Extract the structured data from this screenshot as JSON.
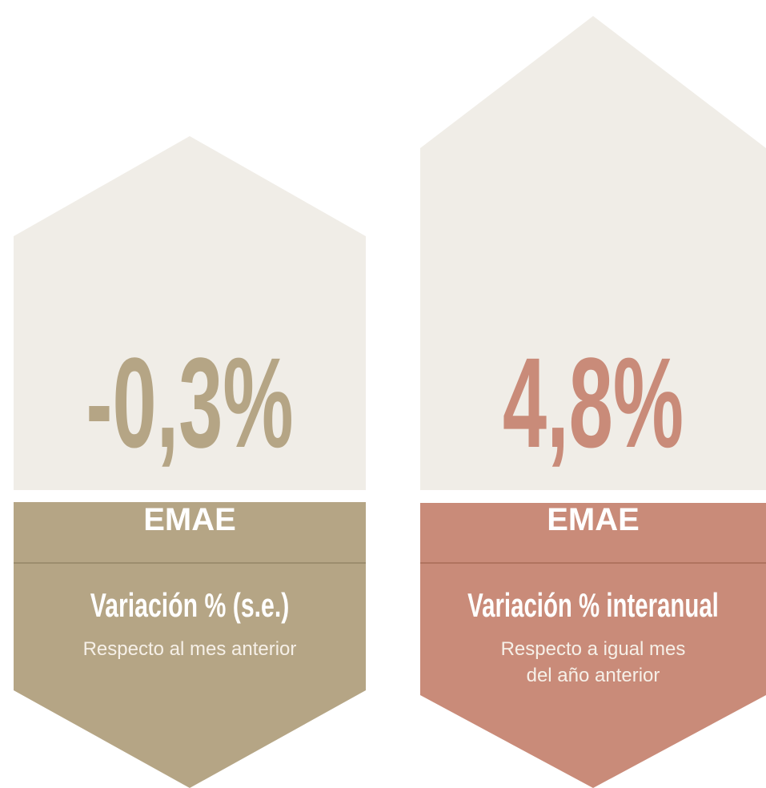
{
  "cards": [
    {
      "value": "-0,3%",
      "title": "EMAE",
      "subtitle": "Variación % (s.e.)",
      "description": [
        "Respecto al mes anterior"
      ]
    },
    {
      "value": "4,8%",
      "title": "EMAE",
      "subtitle": "Variación % interanual",
      "description": [
        "Respecto a igual mes",
        "del año anterior"
      ]
    }
  ]
}
